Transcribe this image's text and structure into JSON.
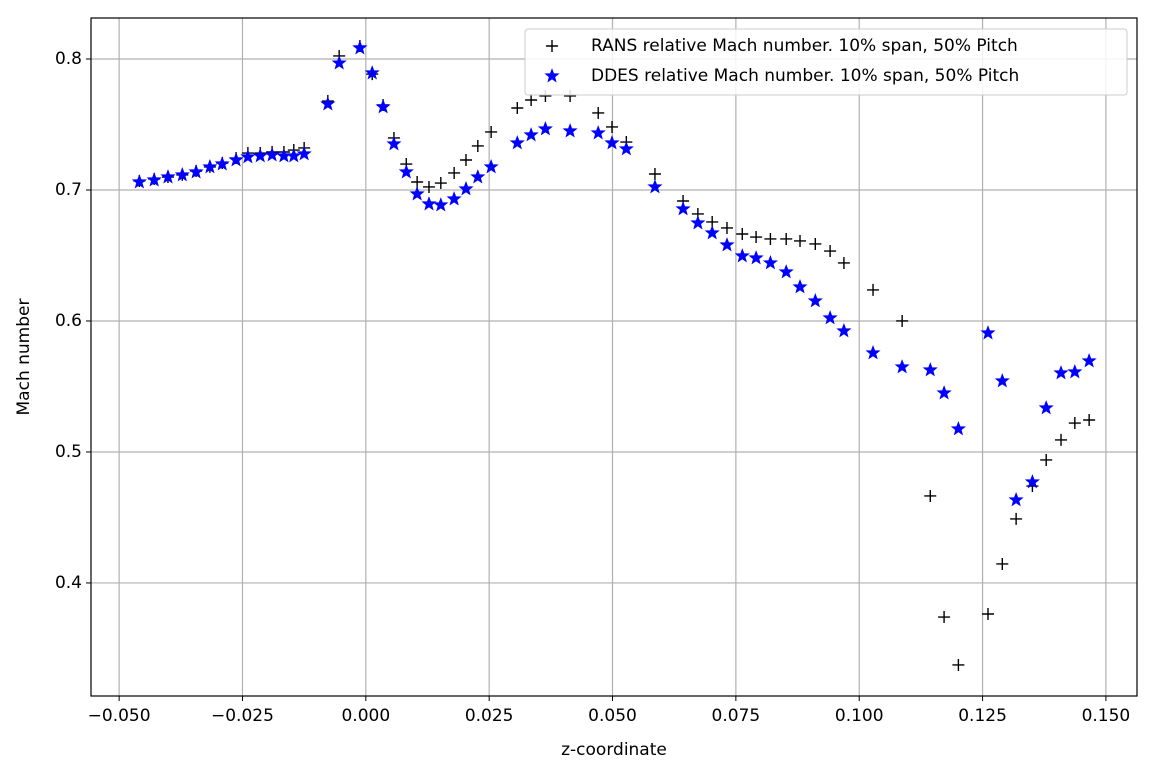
{
  "chart_data": {
    "type": "scatter",
    "x_label": "z-coordinate",
    "y_label": "Mach number",
    "x": [
      -0.0459,
      -0.0429,
      -0.0401,
      -0.0372,
      -0.0344,
      -0.0316,
      -0.0291,
      -0.0263,
      -0.0239,
      -0.0214,
      -0.019,
      -0.0166,
      -0.0146,
      -0.0125,
      -0.0077,
      -0.0054,
      -0.0012,
      0.0013,
      0.0035,
      0.0057,
      0.0082,
      0.0104,
      0.0128,
      0.0152,
      0.0179,
      0.0203,
      0.0227,
      0.0254,
      0.0307,
      0.0335,
      0.0364,
      0.0414,
      0.0471,
      0.0499,
      0.0528,
      0.0586,
      0.0643,
      0.0673,
      0.0702,
      0.0732,
      0.0763,
      0.0791,
      0.082,
      0.0852,
      0.088,
      0.0911,
      0.0941,
      0.0969,
      0.1028,
      0.1087,
      0.1144,
      0.1172,
      0.1201,
      0.1261,
      0.129,
      0.1318,
      0.1351,
      0.1379,
      0.1409,
      0.1437,
      0.1466
    ],
    "series": [
      {
        "name": "RANS relative Mach number. 10% span, 50% Pitch",
        "color": "#000000",
        "marker": "plus",
        "values": [
          0.7069,
          0.7084,
          0.7099,
          0.7115,
          0.7145,
          0.7176,
          0.7206,
          0.7244,
          0.7282,
          0.7282,
          0.729,
          0.729,
          0.7305,
          0.7321,
          0.7679,
          0.8023,
          0.8099,
          0.7885,
          0.7649,
          0.7397,
          0.7198,
          0.7061,
          0.7023,
          0.7053,
          0.713,
          0.7229,
          0.7336,
          0.7443,
          0.7626,
          0.7687,
          0.7718,
          0.7718,
          0.7588,
          0.7481,
          0.7366,
          0.7122,
          0.6916,
          0.6817,
          0.6756,
          0.671,
          0.6664,
          0.6641,
          0.6626,
          0.6626,
          0.6611,
          0.6588,
          0.6534,
          0.6443,
          0.6237,
          0.6,
          0.4664,
          0.374,
          0.3374,
          0.3763,
          0.4145,
          0.4489,
          0.474,
          0.4939,
          0.5092,
          0.5221,
          0.5244
        ]
      },
      {
        "name": "DDES relative Mach number. 10% span, 50% Pitch",
        "color": "#0000ff",
        "marker": "star",
        "values": [
          0.7061,
          0.7076,
          0.7099,
          0.7115,
          0.7137,
          0.7176,
          0.7198,
          0.7229,
          0.7252,
          0.726,
          0.7267,
          0.726,
          0.726,
          0.7275,
          0.7656,
          0.7969,
          0.8084,
          0.7893,
          0.7634,
          0.7351,
          0.7137,
          0.6969,
          0.6893,
          0.6885,
          0.6931,
          0.7008,
          0.7099,
          0.7176,
          0.7359,
          0.742,
          0.7466,
          0.745,
          0.7435,
          0.7359,
          0.7313,
          0.7023,
          0.6855,
          0.6748,
          0.6672,
          0.658,
          0.6496,
          0.6481,
          0.6443,
          0.6374,
          0.626,
          0.6153,
          0.6023,
          0.5924,
          0.5756,
          0.5649,
          0.5626,
          0.545,
          0.5176,
          0.5908,
          0.5542,
          0.4634,
          0.4771,
          0.5336,
          0.5603,
          0.5611,
          0.5695
        ]
      }
    ],
    "xlim": [
      -0.0557,
      0.1563
    ],
    "ylim": [
      0.3137,
      0.8313
    ],
    "xticks": [
      {
        "value": -0.05,
        "label": "−0.050"
      },
      {
        "value": -0.025,
        "label": "−0.025"
      },
      {
        "value": 0,
        "label": "0.000"
      },
      {
        "value": 0.025,
        "label": "0.025"
      },
      {
        "value": 0.05,
        "label": "0.050"
      },
      {
        "value": 0.075,
        "label": "0.075"
      },
      {
        "value": 0.1,
        "label": "0.100"
      },
      {
        "value": 0.125,
        "label": "0.125"
      },
      {
        "value": 0.15,
        "label": "0.150"
      }
    ],
    "yticks": [
      0.4,
      0.5,
      0.6,
      0.7,
      0.8
    ],
    "grid": true,
    "legend": "upper right"
  }
}
